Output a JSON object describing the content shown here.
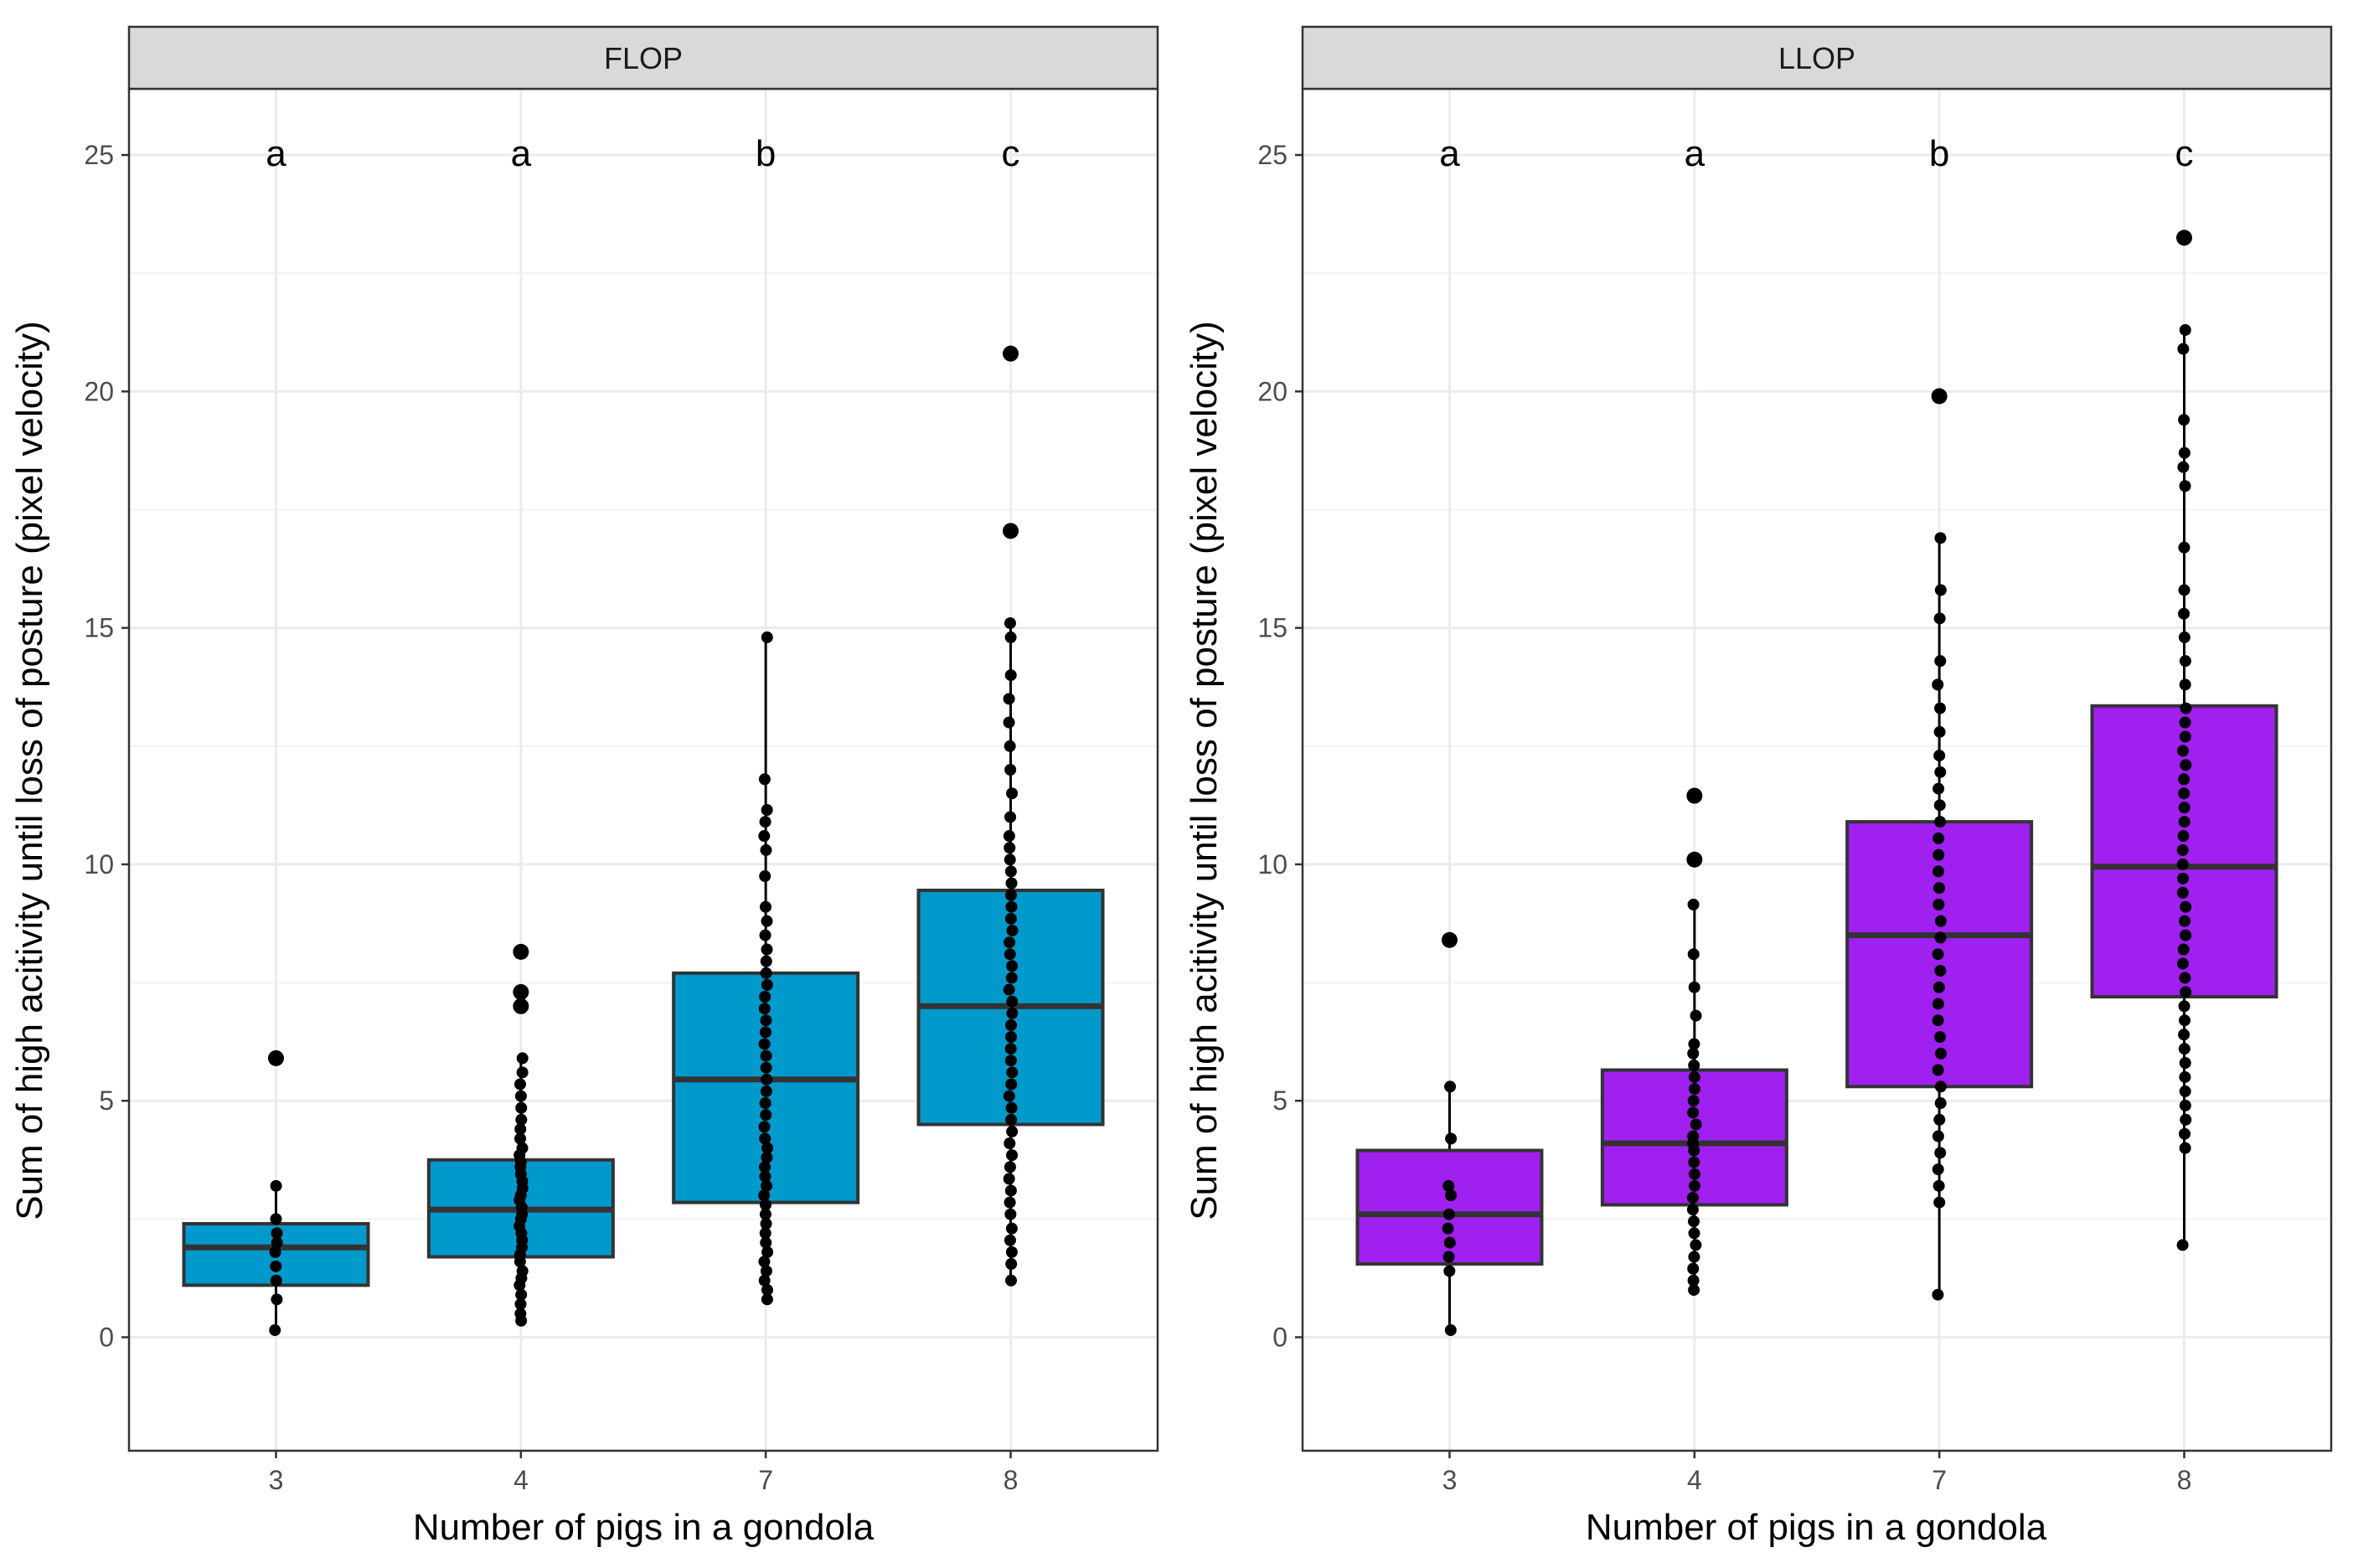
{
  "chart_data": {
    "type": "boxplot",
    "xlabel": "Number of pigs in a gondola",
    "ylabel": "Sum of high acitivity until loss of posture (pixel velocity)",
    "ylim": [
      -2.4,
      26.4
    ],
    "yticks": [
      0,
      5,
      10,
      15,
      20,
      25
    ],
    "categories": [
      "3",
      "4",
      "7",
      "8"
    ],
    "grid": true,
    "panels": [
      {
        "facet": "FLOP",
        "fill": "#0099CC",
        "groups": [
          {
            "category": "3",
            "letter": "a",
            "q1": 1.1,
            "median": 1.9,
            "q3": 2.4,
            "whisker_low": 0.15,
            "whisker_high": 3.2,
            "outliers": [
              5.9
            ],
            "points": [
              0.15,
              0.8,
              1.2,
              1.5,
              1.8,
              2.0,
              2.2,
              2.5,
              3.2
            ]
          },
          {
            "category": "4",
            "letter": "a",
            "q1": 1.7,
            "median": 2.7,
            "q3": 3.75,
            "whisker_low": 0.35,
            "whisker_high": 5.9,
            "outliers": [
              7.0,
              7.3,
              8.15
            ],
            "points": [
              0.35,
              0.5,
              0.7,
              0.9,
              1.1,
              1.25,
              1.4,
              1.6,
              1.75,
              1.9,
              2.05,
              2.2,
              2.35,
              2.5,
              2.6,
              2.75,
              2.9,
              3.0,
              3.15,
              3.3,
              3.45,
              3.6,
              3.7,
              3.85,
              4.0,
              4.2,
              4.4,
              4.6,
              4.85,
              5.1,
              5.35,
              5.6,
              5.9
            ]
          },
          {
            "category": "7",
            "letter": "b",
            "q1": 2.85,
            "median": 5.45,
            "q3": 7.7,
            "whisker_low": 0.8,
            "whisker_high": 14.8,
            "outliers": [],
            "points": [
              0.8,
              1.0,
              1.2,
              1.4,
              1.6,
              1.8,
              2.0,
              2.2,
              2.4,
              2.6,
              2.8,
              3.0,
              3.2,
              3.4,
              3.6,
              3.8,
              4.0,
              4.2,
              4.45,
              4.7,
              4.95,
              5.2,
              5.45,
              5.7,
              5.95,
              6.2,
              6.45,
              6.7,
              6.95,
              7.2,
              7.45,
              7.7,
              7.95,
              8.2,
              8.5,
              8.8,
              9.1,
              9.75,
              10.3,
              10.6,
              10.9,
              11.15,
              11.8,
              14.8
            ]
          },
          {
            "category": "8",
            "letter": "c",
            "q1": 4.5,
            "median": 7.0,
            "q3": 9.45,
            "whisker_low": 1.2,
            "whisker_high": 15.1,
            "outliers": [
              17.05,
              20.8
            ],
            "points": [
              1.2,
              1.55,
              1.8,
              2.05,
              2.3,
              2.6,
              2.85,
              3.1,
              3.35,
              3.6,
              3.85,
              4.1,
              4.35,
              4.6,
              4.85,
              5.1,
              5.35,
              5.6,
              5.85,
              6.1,
              6.35,
              6.6,
              6.85,
              7.1,
              7.35,
              7.6,
              7.85,
              8.1,
              8.35,
              8.6,
              8.85,
              9.1,
              9.35,
              9.6,
              9.85,
              10.1,
              10.35,
              10.6,
              11.0,
              11.5,
              12.0,
              12.5,
              13.0,
              13.5,
              14.0,
              14.8,
              15.1
            ]
          }
        ]
      },
      {
        "facet": "LLOP",
        "fill": "#A020F0",
        "groups": [
          {
            "category": "3",
            "letter": "a",
            "q1": 1.55,
            "median": 2.6,
            "q3": 3.95,
            "whisker_low": 0.15,
            "whisker_high": 5.3,
            "outliers": [
              8.4
            ],
            "points": [
              0.15,
              1.4,
              1.7,
              2.0,
              2.3,
              2.6,
              3.0,
              3.2,
              4.2,
              5.3
            ]
          },
          {
            "category": "4",
            "letter": "a",
            "q1": 2.8,
            "median": 4.1,
            "q3": 5.65,
            "whisker_low": 1.0,
            "whisker_high": 9.15,
            "outliers": [
              10.1,
              11.45
            ],
            "points": [
              1.0,
              1.2,
              1.45,
              1.7,
              1.95,
              2.2,
              2.45,
              2.7,
              2.95,
              3.2,
              3.45,
              3.7,
              3.95,
              4.1,
              4.25,
              4.5,
              4.75,
              5.0,
              5.25,
              5.5,
              5.75,
              6.0,
              6.2,
              6.8,
              7.4,
              8.1,
              9.15
            ]
          },
          {
            "category": "7",
            "letter": "b",
            "q1": 5.3,
            "median": 8.5,
            "q3": 10.9,
            "whisker_low": 0.9,
            "whisker_high": 16.9,
            "outliers": [
              19.9
            ],
            "points": [
              0.9,
              2.85,
              3.2,
              3.55,
              3.9,
              4.25,
              4.6,
              4.95,
              5.3,
              5.65,
              6.0,
              6.35,
              6.7,
              7.05,
              7.4,
              7.75,
              8.1,
              8.45,
              8.8,
              9.15,
              9.5,
              9.85,
              10.2,
              10.55,
              10.9,
              11.25,
              11.6,
              11.95,
              12.3,
              12.8,
              13.3,
              13.8,
              14.3,
              15.2,
              15.8,
              16.9
            ]
          },
          {
            "category": "8",
            "letter": "c",
            "q1": 7.2,
            "median": 9.95,
            "q3": 13.35,
            "whisker_low": 1.95,
            "whisker_high": 21.3,
            "outliers": [
              23.25
            ],
            "points": [
              1.95,
              4.0,
              4.3,
              4.6,
              4.9,
              5.2,
              5.5,
              5.8,
              6.1,
              6.4,
              6.7,
              7.0,
              7.3,
              7.6,
              7.9,
              8.2,
              8.5,
              8.8,
              9.1,
              9.4,
              9.7,
              10.0,
              10.3,
              10.6,
              10.9,
              11.2,
              11.5,
              11.8,
              12.1,
              12.4,
              12.7,
              13.0,
              13.3,
              13.8,
              14.3,
              14.8,
              15.3,
              15.8,
              16.7,
              18.0,
              18.4,
              18.7,
              19.4,
              20.9,
              21.3
            ]
          }
        ]
      }
    ]
  }
}
